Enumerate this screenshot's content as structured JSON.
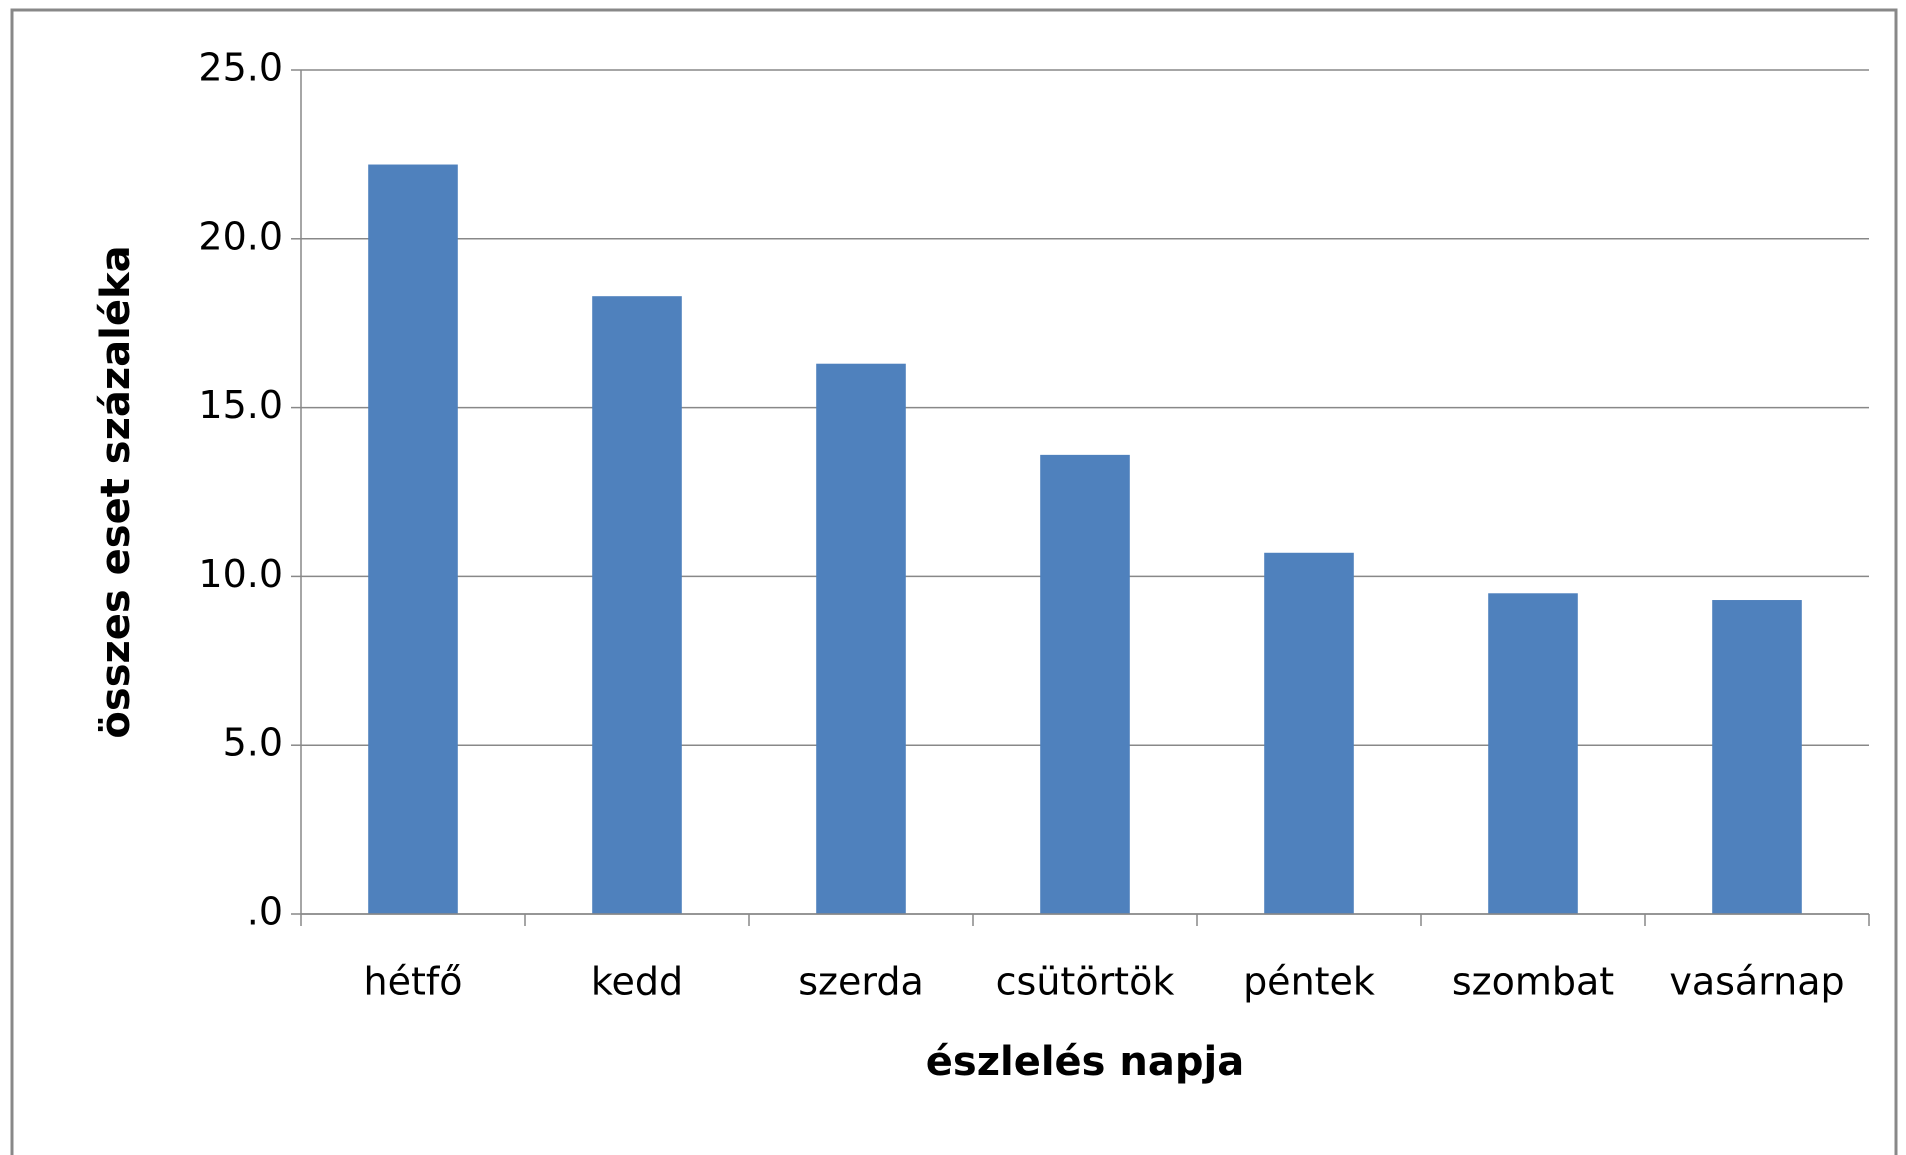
{
  "chart_data": {
    "type": "bar",
    "categories": [
      "hétfő",
      "kedd",
      "szerda",
      "csütörtök",
      "péntek",
      "szombat",
      "vasárnap"
    ],
    "values": [
      22.2,
      18.3,
      16.3,
      13.6,
      10.7,
      9.5,
      9.3
    ],
    "color": "#4f81bd",
    "x_label": "észlelés napja",
    "y_label": "összes eset százaléka",
    "ylim": [
      0,
      25
    ],
    "yticks": [
      {
        "value": 0,
        "label": ".0"
      },
      {
        "value": 5,
        "label": "5.0"
      },
      {
        "value": 10,
        "label": "10.0"
      },
      {
        "value": 15,
        "label": "15.0"
      },
      {
        "value": 20,
        "label": "20.0"
      },
      {
        "value": 25,
        "label": "25.0"
      }
    ],
    "grid": true
  }
}
